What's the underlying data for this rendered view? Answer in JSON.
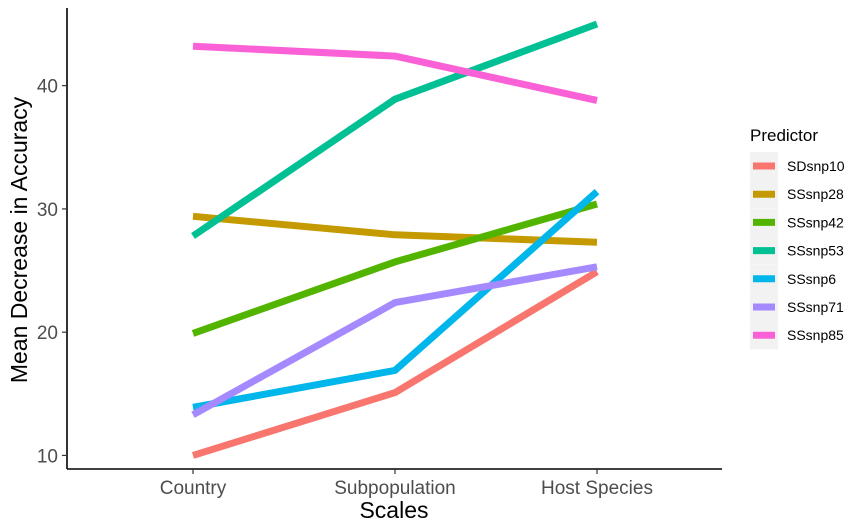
{
  "chart_data": {
    "type": "line",
    "title": "",
    "xlabel": "Scales",
    "ylabel": "Mean Decrease in Accuracy",
    "categories": [
      "Country",
      "Subpopulation",
      "Host Species"
    ],
    "ylim": [
      8.9,
      46.3
    ],
    "yticks": [
      10,
      20,
      30,
      40
    ],
    "grid": false,
    "legend": {
      "title": "Predictor",
      "position": "right"
    },
    "series": [
      {
        "name": "SDsnp10",
        "color": "#F8766D",
        "values": [
          10.0,
          15.1,
          24.9
        ]
      },
      {
        "name": "SSsnp28",
        "color": "#C49A00",
        "values": [
          29.4,
          27.9,
          27.3
        ]
      },
      {
        "name": "SSsnp42",
        "color": "#53B400",
        "values": [
          19.9,
          25.7,
          30.4
        ]
      },
      {
        "name": "SSsnp53",
        "color": "#00C094",
        "values": [
          27.8,
          38.9,
          45.0
        ]
      },
      {
        "name": "SSsnp6",
        "color": "#00B6EB",
        "values": [
          13.9,
          16.9,
          31.4
        ]
      },
      {
        "name": "SSsnp71",
        "color": "#A58AFF",
        "values": [
          13.3,
          22.4,
          25.3
        ]
      },
      {
        "name": "SSsnp85",
        "color": "#FB61D7",
        "values": [
          43.2,
          42.4,
          38.8
        ]
      }
    ]
  }
}
